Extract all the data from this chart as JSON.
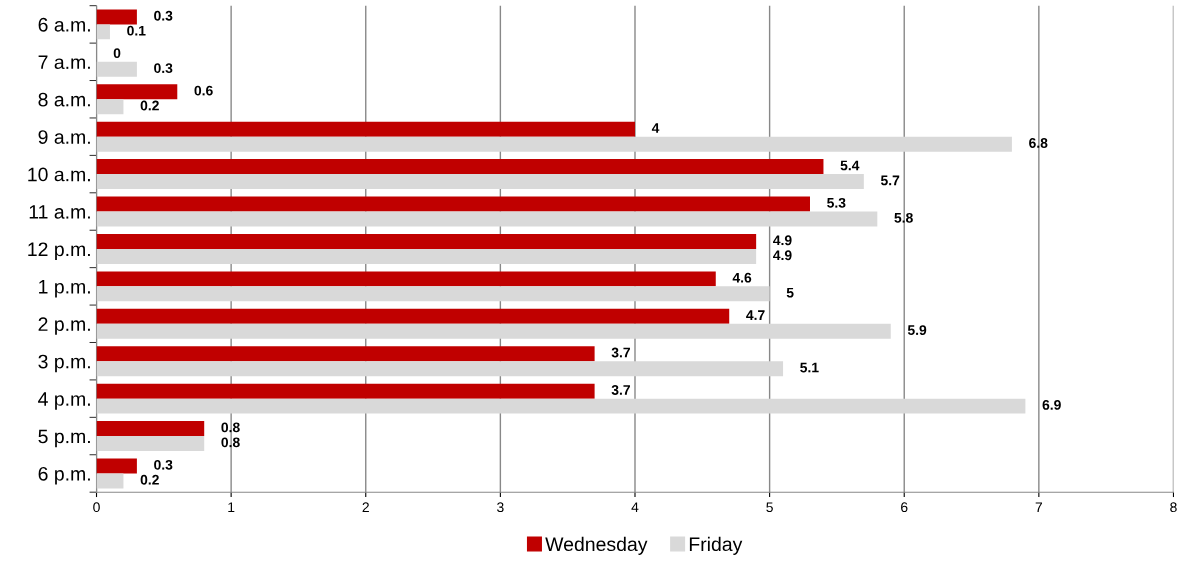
{
  "chart_data": {
    "type": "bar",
    "orientation": "horizontal",
    "categories": [
      "6 a.m.",
      "7 a.m.",
      "8 a.m.",
      "9 a.m.",
      "10 a.m.",
      "11 a.m.",
      "12 p.m.",
      "1 p.m.",
      "2 p.m.",
      "3 p.m.",
      "4 p.m.",
      "5 p.m.",
      "6 p.m."
    ],
    "series": [
      {
        "name": "Wednesday",
        "color": "#c00000",
        "values": [
          0.3,
          0,
          0.6,
          4,
          5.4,
          5.3,
          4.9,
          4.6,
          4.7,
          3.7,
          3.7,
          0.8,
          0.3
        ]
      },
      {
        "name": "Friday",
        "color": "#d9d9d9",
        "values": [
          0.1,
          0.3,
          0.2,
          6.8,
          5.7,
          5.8,
          4.9,
          5,
          5.9,
          5.1,
          6.9,
          0.8,
          0.2
        ]
      }
    ],
    "xlim": [
      0,
      8
    ],
    "xticks": [
      0,
      1,
      2,
      3,
      4,
      5,
      6,
      7,
      8
    ],
    "grid": "x",
    "legend": "bottom",
    "data_labels": true
  }
}
